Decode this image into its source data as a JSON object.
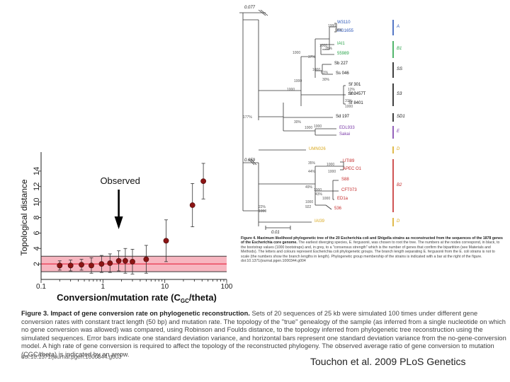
{
  "tree": {
    "scale_top": "0.077",
    "scale_mid": "0.059",
    "scale_bottom": "0.01",
    "strains": [
      {
        "name": "W3110",
        "color": "#2a55b8"
      },
      {
        "name": "W3110b",
        "display": "MG1655",
        "color": "#2a55b8"
      },
      {
        "name": "IAI1",
        "color": "#27a348"
      },
      {
        "name": "55989",
        "color": "#27a348"
      },
      {
        "name": "Sb 227",
        "color": "#111111"
      },
      {
        "name": "Ss 046",
        "color": "#111111"
      },
      {
        "name": "Sf 301",
        "color": "#111111"
      },
      {
        "name": "Sf 2457T",
        "color": "#111111"
      },
      {
        "name": "Sf 8401",
        "color": "#111111"
      },
      {
        "name": "Sd 197",
        "color": "#111111"
      },
      {
        "name": "EDL933",
        "color": "#7a3aa8"
      },
      {
        "name": "Sakai",
        "color": "#7a3aa8"
      },
      {
        "name": "UMN026",
        "color": "#d9a81e"
      },
      {
        "name": "UTI89",
        "color": "#c42a2a"
      },
      {
        "name": "APEC O1",
        "color": "#c42a2a"
      },
      {
        "name": "S88",
        "color": "#c42a2a"
      },
      {
        "name": "CFT073",
        "color": "#c42a2a"
      },
      {
        "name": "ED1a",
        "color": "#c42a2a"
      },
      {
        "name": "536",
        "color": "#c42a2a"
      },
      {
        "name": "IAI39",
        "color": "#d9a81e"
      }
    ],
    "groups": [
      {
        "label": "A",
        "color": "#2a55b8"
      },
      {
        "label": "B1",
        "color": "#27a348"
      },
      {
        "label": "SS",
        "color": "#111111"
      },
      {
        "label": "S3",
        "color": "#111111"
      },
      {
        "label": "SD1",
        "color": "#111111"
      },
      {
        "label": "E",
        "color": "#7a3aa8"
      },
      {
        "label": "D",
        "color": "#d9a81e"
      },
      {
        "label": "B2",
        "color": "#c42a2a"
      },
      {
        "label": "D",
        "color": "#d9a81e"
      }
    ],
    "bootstrap": [
      "1000",
      "94%",
      "1000",
      "35%",
      "1000",
      "37%",
      "1000",
      "61%",
      "1000",
      "30%",
      "1000",
      "12%",
      "1000",
      "31%",
      "1000",
      "177%",
      "30%",
      "1000",
      "1000",
      "35%",
      "1000",
      "44%",
      "1000",
      "49%",
      "1000",
      "43%",
      "1000",
      "1000",
      "922",
      "22%",
      "1000"
    ],
    "caption_title": "Figure 4. Maximum likelihood phylogenetic tree of the 20 Escherichia coli and Shigella strains as reconstructed from the sequences of the 1878 genes of the Escherichia core genome.",
    "caption_body": "The earliest diverging species, E. fergusonii, was chosen to root the tree. The numbers at the nodes correspond, in black, to the bootstrap values (1000 bootstraps) and, in grey, to a \"consensus strength\" which is the number of genes that confirm the bipartition (see Materials and Methods). The letters and colours represent Escherichia coli phylogenetic groups. The branch length separating E. fergusonii from the E. coli strains is not to scale (the numbers show the branch lengths in length). Phylogenetic group membership of the strains is indicated with a bar at the right of the figure.",
    "caption_doi": "doi:10.1371/journal.pgen.1000344.g004"
  },
  "chart": {
    "annotation": "Observed",
    "ylabel": "Topological distance",
    "xlabel_main": "Conversion/mutation rate (C",
    "xlabel_sub": "GC",
    "xlabel_end": "/theta)"
  },
  "chart_data": {
    "type": "scatter",
    "title": "",
    "xlabel": "Conversion/mutation rate (CGC/theta)",
    "ylabel": "Topological distance",
    "x_scale": "log",
    "xlim": [
      0.1,
      100
    ],
    "ylim": [
      0,
      16
    ],
    "x_ticks": [
      "0.1",
      "1",
      "10",
      "100"
    ],
    "y_ticks": [
      "2",
      "4",
      "6",
      "8",
      "10",
      "12",
      "14"
    ],
    "band": {
      "mean": 2.0,
      "sd": 1.0,
      "color": "#e8324a"
    },
    "observed_x": 1.8,
    "points": [
      {
        "x": 0.2,
        "y": 1.8,
        "err": 0.6
      },
      {
        "x": 0.3,
        "y": 1.8,
        "err": 0.7
      },
      {
        "x": 0.45,
        "y": 1.9,
        "err": 0.7
      },
      {
        "x": 0.65,
        "y": 1.8,
        "err": 1.0
      },
      {
        "x": 0.95,
        "y": 2.0,
        "err": 1.1
      },
      {
        "x": 1.3,
        "y": 2.1,
        "err": 1.2
      },
      {
        "x": 1.8,
        "y": 2.4,
        "err": 1.3
      },
      {
        "x": 2.3,
        "y": 2.4,
        "err": 1.6
      },
      {
        "x": 3.0,
        "y": 2.3,
        "err": 1.6
      },
      {
        "x": 5.0,
        "y": 2.6,
        "err": 1.8
      },
      {
        "x": 10.5,
        "y": 5.0,
        "err": 2.7
      },
      {
        "x": 28,
        "y": 9.6,
        "err": 2.8
      },
      {
        "x": 42,
        "y": 12.7,
        "err": 2.3
      }
    ],
    "point_color": "#8b1414"
  },
  "figure3": {
    "caption_title": "Figure 3. Impact of gene conversion rate on phylogenetic reconstruction.",
    "caption_body": "Sets of 20 sequences of 25 kb were simulated 100 times under different gene conversion rates with constant tract length (50 bp) and mutation rate. The topology of the \"true\" genealogy of the sample (as inferred from a single nucleotide on which no gene conversion was allowed) was compared, using Robinson and Foulds distance, to the topology inferred from phylogenetic tree reconstruction using the simulated sequences. Error bars indicate one standard deviation variance, and horizontal bars represent one standard deviation variance from the no-gene-conversion model. A high rate of gene conversion is required to affect the topology of the reconstructed phylogeny. The observed average ratio of gene conversion to mutation (CGC/theta) is indicated by an arrow.",
    "doi": "doi:10.1371/journal.pgen.1000344.g003"
  },
  "credit": "Touchon et al. 2009 PLoS Genetics"
}
